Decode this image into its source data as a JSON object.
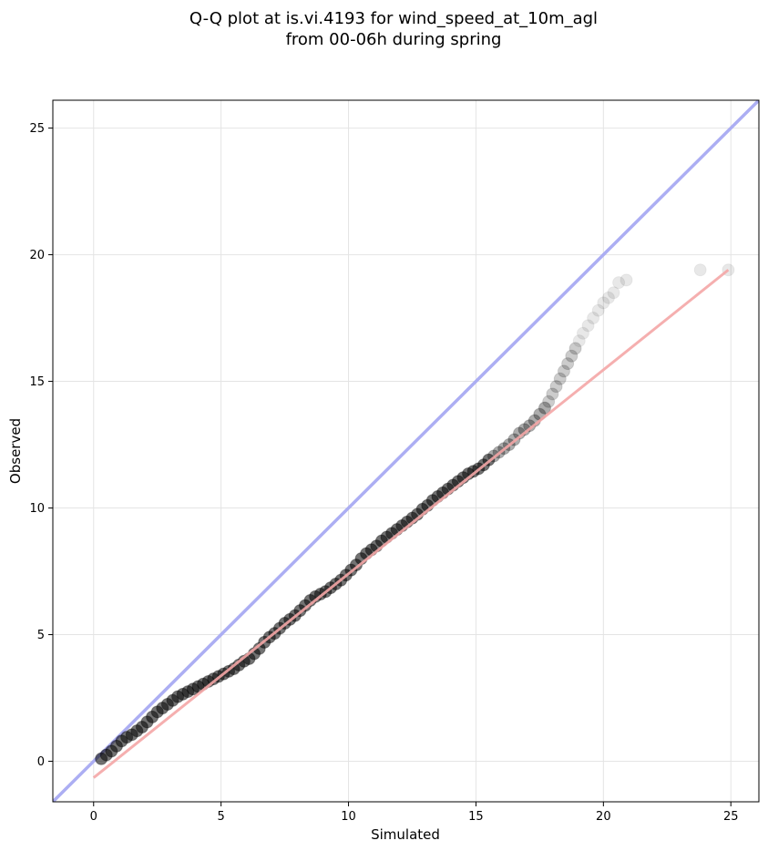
{
  "chart_data": {
    "type": "scatter",
    "title_lines": [
      "Q-Q plot at is.vi.4193 for wind_speed_at_10m_agl",
      "from 00-06h during spring"
    ],
    "xlabel": "Simulated",
    "ylabel": "Observed",
    "xlim": [
      -1.6,
      26.1
    ],
    "ylim": [
      -1.6,
      26.1
    ],
    "xticks": [
      0,
      5,
      10,
      15,
      20,
      25
    ],
    "yticks": [
      0,
      5,
      10,
      15,
      20,
      25
    ],
    "grid": true,
    "colors": {
      "points": "#000000",
      "identity_line": "#a8aaf2",
      "fit_line": "#f4a6a6"
    },
    "identity_line": {
      "from": [
        -1.6,
        -1.6
      ],
      "to": [
        26.1,
        26.1
      ]
    },
    "fit_line": {
      "from": [
        0.0,
        -0.65
      ],
      "to": [
        24.9,
        19.4
      ]
    },
    "quantiles": {
      "x": [
        0.3,
        0.5,
        0.7,
        0.9,
        1.1,
        1.3,
        1.5,
        1.7,
        1.9,
        2.1,
        2.3,
        2.5,
        2.7,
        2.9,
        3.1,
        3.3,
        3.5,
        3.7,
        3.9,
        4.1,
        4.3,
        4.5,
        4.7,
        4.9,
        5.1,
        5.3,
        5.5,
        5.7,
        5.9,
        6.1,
        6.3,
        6.5,
        6.7,
        6.9,
        7.1,
        7.3,
        7.5,
        7.7,
        7.9,
        8.1,
        8.3,
        8.5,
        8.7,
        8.9,
        9.1,
        9.3,
        9.5,
        9.7,
        9.9,
        10.1,
        10.3,
        10.5,
        10.7,
        10.9,
        11.1,
        11.3,
        11.5,
        11.7,
        11.9,
        12.1,
        12.3,
        12.5,
        12.7,
        12.9,
        13.1,
        13.3,
        13.5,
        13.7,
        13.9,
        14.1,
        14.3,
        14.5,
        14.7,
        14.9,
        15.1,
        15.3,
        15.5,
        15.7,
        15.9,
        16.1,
        16.3,
        16.5,
        16.7,
        16.9,
        17.1,
        17.3,
        17.5,
        17.7,
        17.85,
        18.0,
        18.15,
        18.3,
        18.45,
        18.6,
        18.75,
        18.9,
        19.05,
        19.2,
        19.4,
        19.6,
        19.8,
        20.0,
        20.2,
        20.4,
        20.6,
        20.9,
        23.8,
        24.9
      ],
      "y": [
        0.1,
        0.25,
        0.4,
        0.6,
        0.8,
        0.95,
        1.05,
        1.2,
        1.35,
        1.55,
        1.75,
        1.95,
        2.1,
        2.25,
        2.4,
        2.55,
        2.65,
        2.75,
        2.85,
        2.95,
        3.05,
        3.15,
        3.25,
        3.35,
        3.45,
        3.55,
        3.65,
        3.8,
        3.95,
        4.05,
        4.25,
        4.45,
        4.7,
        4.9,
        5.05,
        5.25,
        5.45,
        5.6,
        5.75,
        5.95,
        6.15,
        6.35,
        6.5,
        6.6,
        6.7,
        6.85,
        7.0,
        7.15,
        7.35,
        7.55,
        7.75,
        8.0,
        8.2,
        8.35,
        8.5,
        8.7,
        8.85,
        9.0,
        9.15,
        9.3,
        9.45,
        9.6,
        9.75,
        9.95,
        10.1,
        10.3,
        10.45,
        10.6,
        10.75,
        10.9,
        11.05,
        11.2,
        11.35,
        11.45,
        11.55,
        11.7,
        11.9,
        12.05,
        12.2,
        12.35,
        12.5,
        12.7,
        12.95,
        13.1,
        13.25,
        13.45,
        13.7,
        13.95,
        14.2,
        14.5,
        14.8,
        15.1,
        15.4,
        15.7,
        16.0,
        16.3,
        16.6,
        16.9,
        17.2,
        17.5,
        17.8,
        18.1,
        18.3,
        18.5,
        18.9,
        19.0,
        19.4,
        19.4
      ]
    }
  }
}
